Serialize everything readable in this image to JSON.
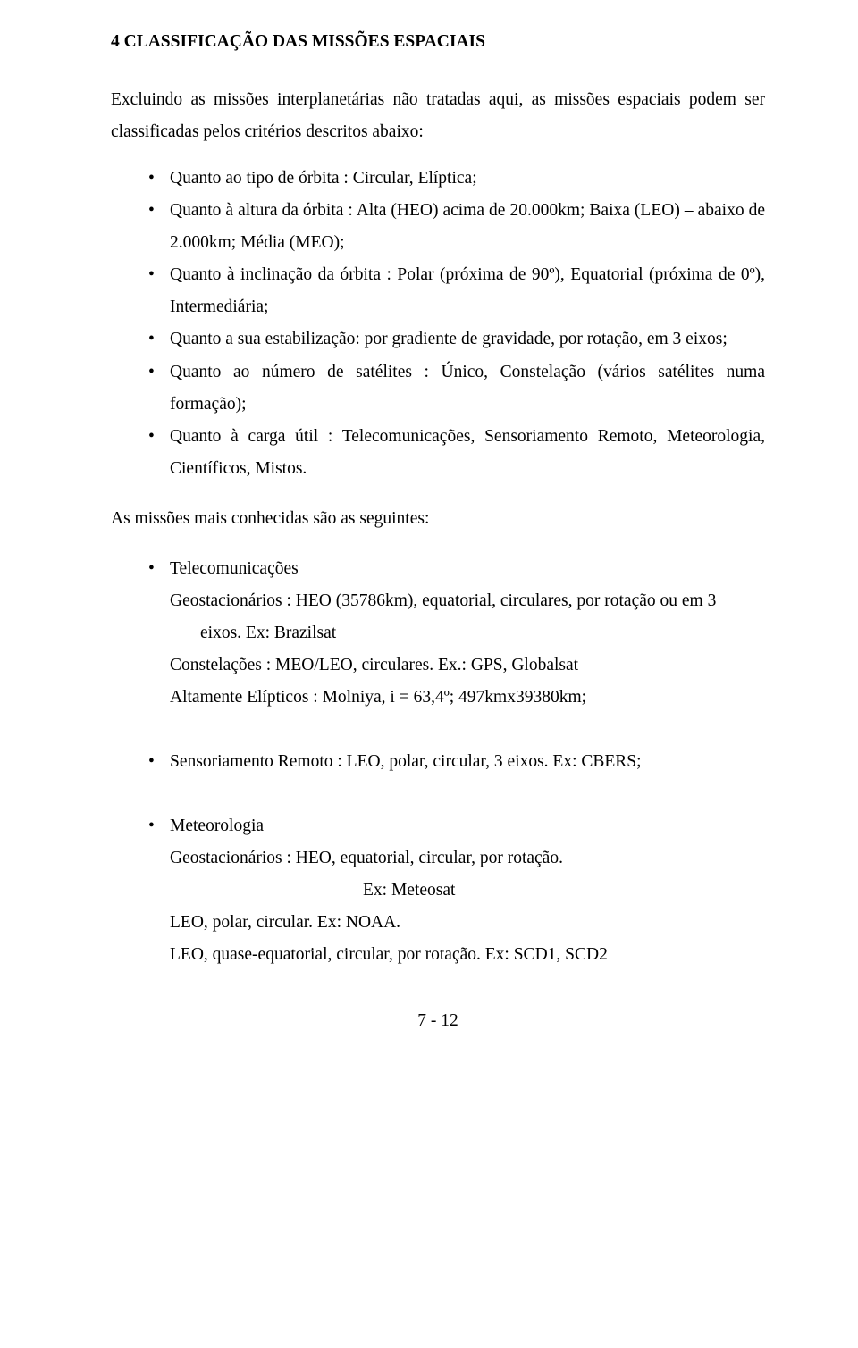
{
  "heading": "4 CLASSIFICAÇÃO DAS MISSÕES ESPACIAIS",
  "intro": "Excluindo as missões interplanetárias não tratadas aqui, as missões espaciais podem ser classificadas pelos critérios descritos abaixo:",
  "criteria": [
    "Quanto ao tipo de órbita : Circular, Elíptica;",
    "Quanto à altura da órbita : Alta (HEO) acima de 20.000km; Baixa (LEO) – abaixo de 2.000km; Média (MEO);",
    "Quanto à inclinação da órbita : Polar (próxima de 90º), Equatorial (próxima de 0º), Intermediária;",
    "Quanto a sua estabilização: por gradiente de gravidade, por rotação, em 3 eixos;",
    "Quanto ao número de satélites : Único, Constelação (vários satélites numa formação);",
    "Quanto à carga útil : Telecomunicações, Sensoriamento Remoto, Meteorologia, Científicos, Mistos."
  ],
  "knownIntro": "As missões mais conhecidas são as seguintes:",
  "telecom": {
    "title": "Telecomunicações",
    "line1": "Geostacionários : HEO (35786km), equatorial,  circulares, por  rotação ou em 3",
    "line1b": "eixos. Ex: Brazilsat",
    "line2": "Constelações : MEO/LEO, circulares. Ex.: GPS, Globalsat",
    "line3": "Altamente Elípticos : Molniya, i = 63,4º; 497kmx39380km;"
  },
  "remote": {
    "text": "Sensoriamento Remoto : LEO, polar, circular, 3 eixos. Ex: CBERS;"
  },
  "meteo": {
    "title": "Meteorologia",
    "line1": "Geostacionários : HEO, equatorial, circular, por rotação.",
    "line1ex": "Ex: Meteosat",
    "line2": "LEO, polar, circular. Ex: NOAA.",
    "line3": "LEO, quase-equatorial, circular, por rotação. Ex: SCD1, SCD2"
  },
  "footer": "7 - 12"
}
